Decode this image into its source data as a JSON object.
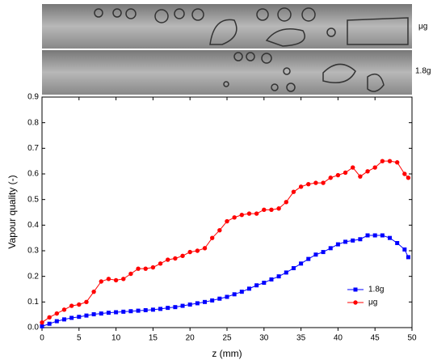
{
  "image_labels": [
    "μg",
    "1.8g"
  ],
  "chart_data": {
    "type": "line",
    "xlabel": "z (mm)",
    "ylabel": "Vapour quality (-)",
    "xlim": [
      0,
      50
    ],
    "xticks": [
      0,
      5,
      10,
      15,
      20,
      25,
      30,
      35,
      40,
      45,
      50
    ],
    "ylim": [
      0,
      0.9
    ],
    "yticks": [
      {
        "value": 0,
        "label": "0.0"
      },
      0.1,
      0.2,
      0.3,
      0.4,
      0.5,
      0.6,
      0.7,
      0.8,
      0.9
    ],
    "legend": "lower right",
    "x": [
      0,
      1,
      2,
      3,
      4,
      5,
      6,
      7,
      8,
      9,
      10,
      11,
      12,
      13,
      14,
      15,
      16,
      17,
      18,
      19,
      20,
      21,
      22,
      23,
      24,
      25,
      26,
      27,
      28,
      29,
      30,
      31,
      32,
      33,
      34,
      35,
      36,
      37,
      38,
      39,
      40,
      41,
      42,
      43,
      44,
      45,
      46,
      47,
      48,
      49,
      49.5
    ],
    "series": [
      {
        "name": "1.8g",
        "color": "#0000ff",
        "marker": "square",
        "values": [
          0.005,
          0.015,
          0.025,
          0.032,
          0.038,
          0.042,
          0.047,
          0.052,
          0.055,
          0.058,
          0.06,
          0.062,
          0.064,
          0.066,
          0.068,
          0.07,
          0.073,
          0.077,
          0.08,
          0.085,
          0.09,
          0.095,
          0.1,
          0.106,
          0.113,
          0.12,
          0.13,
          0.14,
          0.152,
          0.165,
          0.175,
          0.188,
          0.2,
          0.215,
          0.232,
          0.25,
          0.268,
          0.285,
          0.295,
          0.31,
          0.325,
          0.335,
          0.34,
          0.345,
          0.36,
          0.36,
          0.36,
          0.35,
          0.33,
          0.305,
          0.275
        ]
      },
      {
        "name": "μg",
        "color": "#ff0000",
        "marker": "circle",
        "values": [
          0.02,
          0.04,
          0.055,
          0.07,
          0.085,
          0.09,
          0.1,
          0.14,
          0.18,
          0.19,
          0.185,
          0.19,
          0.21,
          0.23,
          0.23,
          0.235,
          0.25,
          0.265,
          0.27,
          0.28,
          0.295,
          0.3,
          0.31,
          0.35,
          0.38,
          0.415,
          0.43,
          0.44,
          0.445,
          0.445,
          0.46,
          0.46,
          0.465,
          0.49,
          0.53,
          0.55,
          0.56,
          0.565,
          0.565,
          0.585,
          0.595,
          0.605,
          0.625,
          0.59,
          0.61,
          0.625,
          0.65,
          0.65,
          0.645,
          0.6,
          0.585
        ]
      }
    ]
  }
}
